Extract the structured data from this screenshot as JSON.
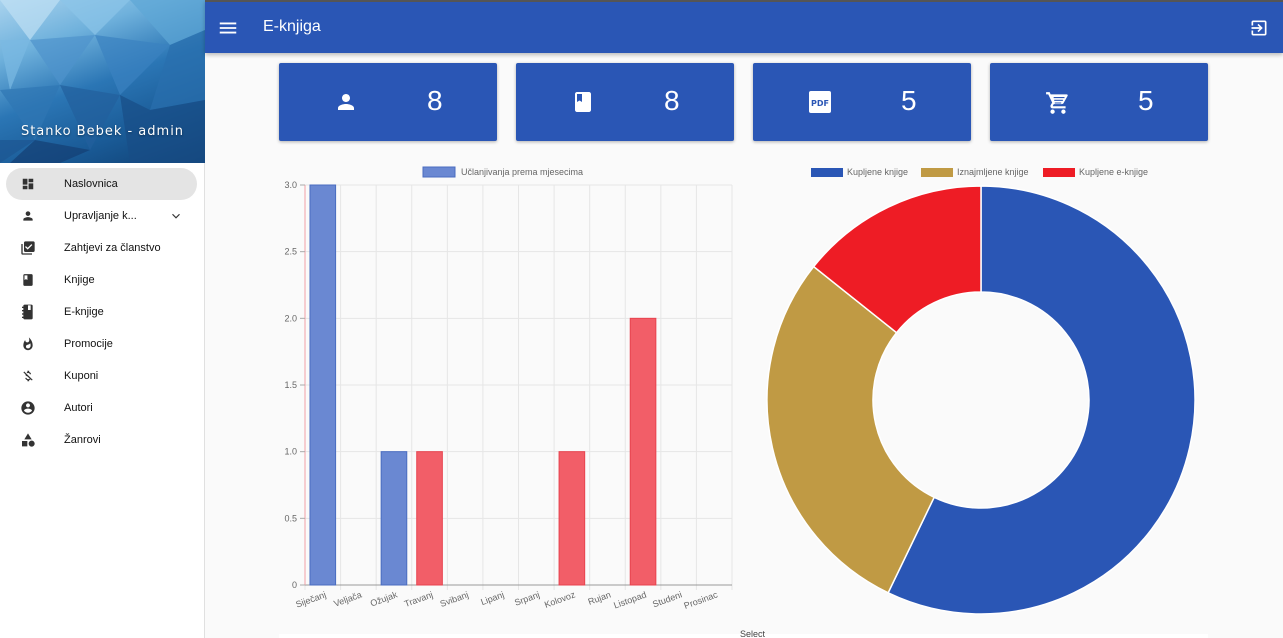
{
  "sidebar": {
    "user": "Stanko Bebek - admin",
    "items": [
      {
        "label": "Naslovnica",
        "icon": "dashboard-icon",
        "active": true
      },
      {
        "label": "Upravljanje k...",
        "icon": "person-icon",
        "expandable": true
      },
      {
        "label": "Zahtjevi za članstvo",
        "icon": "checklist-icon"
      },
      {
        "label": "Knjige",
        "icon": "book-icon"
      },
      {
        "label": "E-knjige",
        "icon": "ebook-icon"
      },
      {
        "label": "Promocije",
        "icon": "fire-icon"
      },
      {
        "label": "Kuponi",
        "icon": "money-off-icon"
      },
      {
        "label": "Autori",
        "icon": "account-circle-icon"
      },
      {
        "label": "Žanrovi",
        "icon": "category-icon"
      }
    ]
  },
  "topbar": {
    "title": "E-knjiga"
  },
  "cards": [
    {
      "value": "8",
      "icon": "person-icon"
    },
    {
      "value": "8",
      "icon": "book-icon"
    },
    {
      "value": "5",
      "icon": "pdf-icon"
    },
    {
      "value": "5",
      "icon": "cart-icon"
    }
  ],
  "colors": {
    "primary": "#2a56b5",
    "bar_blue": "#6a88d2",
    "bar_red": "#f25e68",
    "gold": "#c09a44",
    "red": "#ee1c25"
  },
  "chart_data": [
    {
      "type": "bar",
      "legend": [
        "Učlanjivanja prema mjesecima"
      ],
      "categories": [
        "Siječanj",
        "Veljača",
        "Ožujak",
        "Travanj",
        "Svibanj",
        "Lipanj",
        "Srpanj",
        "Kolovoz",
        "Rujan",
        "Listopad",
        "Studeni",
        "Prosinac"
      ],
      "values": [
        3,
        0,
        1,
        1,
        0,
        0,
        0,
        1,
        0,
        2,
        0,
        0
      ],
      "bar_colors": [
        "blue",
        "blue",
        "blue",
        "red",
        "red",
        "red",
        "red",
        "red",
        "red",
        "red",
        "red",
        "red"
      ],
      "yticks": [
        "0",
        "0.5",
        "1.0",
        "1.5",
        "2.0",
        "2.5",
        "3.0"
      ],
      "ylim": [
        0,
        3
      ],
      "grid": true
    },
    {
      "type": "pie",
      "legend_position": "top",
      "labels": [
        "Kupljene knjige",
        "Iznajmljene knjige",
        "Kupljene e-knjige"
      ],
      "values": [
        8,
        4,
        2
      ],
      "colors": [
        "#2a56b5",
        "#c09a44",
        "#ee1c25"
      ]
    }
  ],
  "footer": {
    "select_label": "Select"
  }
}
